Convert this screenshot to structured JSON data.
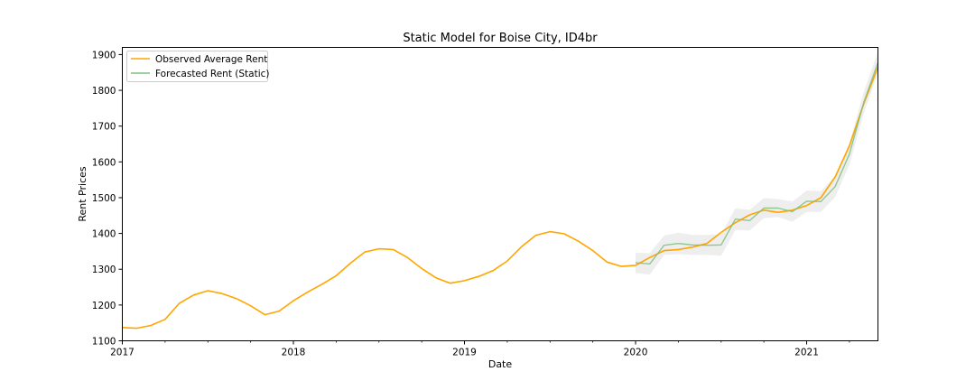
{
  "chart_data": {
    "type": "line",
    "title": "Static Model for Boise City, ID4br",
    "xlabel": "Date",
    "ylabel": "Rent Prices",
    "xlim": [
      "2017-01",
      "2021-06"
    ],
    "ylim": [
      1100,
      1920
    ],
    "x_tick_labels": [
      "2017",
      "2018",
      "2019",
      "2020",
      "2021"
    ],
    "y_tick_labels": [
      "1100",
      "1200",
      "1300",
      "1400",
      "1500",
      "1600",
      "1700",
      "1800",
      "1900"
    ],
    "legend_position": "top-left",
    "grid": false,
    "colors": {
      "observed": "#ffa500",
      "forecast": "#7fbf7f",
      "confidence_band": "#d9d9d9"
    },
    "series": [
      {
        "name": "Observed Average Rent",
        "x": [
          "2017-01",
          "2017-02",
          "2017-03",
          "2017-04",
          "2017-05",
          "2017-06",
          "2017-07",
          "2017-08",
          "2017-09",
          "2017-10",
          "2017-11",
          "2017-12",
          "2018-01",
          "2018-02",
          "2018-03",
          "2018-04",
          "2018-05",
          "2018-06",
          "2018-07",
          "2018-08",
          "2018-09",
          "2018-10",
          "2018-11",
          "2018-12",
          "2019-01",
          "2019-02",
          "2019-03",
          "2019-04",
          "2019-05",
          "2019-06",
          "2019-07",
          "2019-08",
          "2019-09",
          "2019-10",
          "2019-11",
          "2019-12",
          "2020-01",
          "2020-02",
          "2020-03",
          "2020-04",
          "2020-05",
          "2020-06",
          "2020-07",
          "2020-08",
          "2020-09",
          "2020-10",
          "2020-11",
          "2020-12",
          "2021-01",
          "2021-02",
          "2021-03",
          "2021-04",
          "2021-05",
          "2021-06"
        ],
        "values": [
          1137,
          1135,
          1143,
          1160,
          1205,
          1228,
          1240,
          1232,
          1218,
          1198,
          1173,
          1183,
          1212,
          1236,
          1258,
          1282,
          1317,
          1348,
          1357,
          1355,
          1333,
          1302,
          1276,
          1261,
          1268,
          1280,
          1296,
          1323,
          1363,
          1395,
          1405,
          1399,
          1378,
          1352,
          1320,
          1308,
          1311,
          1333,
          1352,
          1355,
          1362,
          1372,
          1403,
          1430,
          1452,
          1465,
          1459,
          1465,
          1478,
          1500,
          1558,
          1645,
          1762,
          1865
        ]
      },
      {
        "name": "Forecasted Rent (Static)",
        "x": [
          "2020-01",
          "2020-02",
          "2020-03",
          "2020-04",
          "2020-05",
          "2020-06",
          "2020-07",
          "2020-08",
          "2020-09",
          "2020-10",
          "2020-11",
          "2020-12",
          "2021-01",
          "2021-02",
          "2021-03",
          "2021-04",
          "2021-05",
          "2021-06"
        ],
        "values": [
          1318,
          1315,
          1367,
          1372,
          1368,
          1367,
          1368,
          1440,
          1436,
          1471,
          1471,
          1461,
          1490,
          1489,
          1531,
          1622,
          1765,
          1878
        ],
        "lower": [
          1290,
          1285,
          1340,
          1342,
          1340,
          1340,
          1338,
          1410,
          1408,
          1443,
          1446,
          1433,
          1460,
          1460,
          1502,
          1592,
          1735,
          1848
        ],
        "upper": [
          1346,
          1345,
          1394,
          1402,
          1396,
          1396,
          1398,
          1470,
          1466,
          1499,
          1496,
          1489,
          1520,
          1518,
          1560,
          1652,
          1795,
          1908
        ]
      }
    ]
  }
}
